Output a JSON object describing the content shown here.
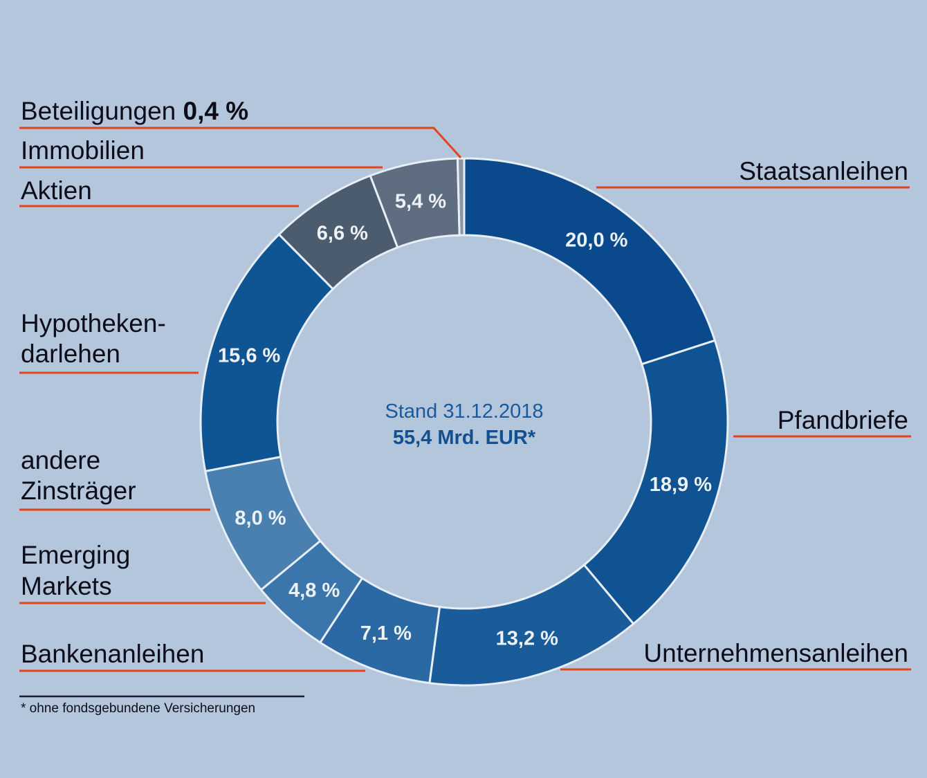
{
  "chart_data": {
    "type": "pie",
    "variant": "donut",
    "center_text": {
      "line1": "Stand 31.12.2018",
      "line2": "55,4 Mrd. EUR*"
    },
    "footnote": "* ohne fondsgebundene Versicherungen",
    "slices": [
      {
        "label": "Staatsanleihen",
        "value": 20.0,
        "value_label": "20,0 %",
        "color": "#0a4a8c"
      },
      {
        "label": "Pfandbriefe",
        "value": 18.9,
        "value_label": "18,9 %",
        "color": "#105393"
      },
      {
        "label": "Unternehmensanleihen",
        "value": 13.2,
        "value_label": "13,2 %",
        "color": "#1a5c9a"
      },
      {
        "label": "Bankenanleihen",
        "value": 7.1,
        "value_label": "7,1 %",
        "color": "#2a69a3"
      },
      {
        "label": "Emerging Markets",
        "value": 4.8,
        "value_label": "4,8 %",
        "color": "#3a75ab"
      },
      {
        "label": "andere Zinsträger",
        "value": 8.0,
        "value_label": "8,0 %",
        "color": "#4a80b0"
      },
      {
        "label": "Hypothekendarlehen",
        "value": 15.6,
        "value_label": "15,6 %",
        "color": "#0f5593"
      },
      {
        "label": "Aktien",
        "value": 6.6,
        "value_label": "6,6 %",
        "color": "#4a5c6e"
      },
      {
        "label": "Immobilien",
        "value": 5.4,
        "value_label": "5,4 %",
        "color": "#5e6e80"
      },
      {
        "label": "Beteiligungen",
        "value": 0.4,
        "value_label": "0,4 %",
        "color": "#8a96a4"
      }
    ],
    "callouts": [
      {
        "lines": [
          "Staatsanleihen"
        ]
      },
      {
        "lines": [
          "Pfandbriefe"
        ]
      },
      {
        "lines": [
          "Unternehmensanleihen"
        ]
      },
      {
        "lines": [
          "Bankenanleihen"
        ]
      },
      {
        "lines": [
          "Emerging",
          "Markets"
        ]
      },
      {
        "lines": [
          "andere",
          "Zinsträger"
        ]
      },
      {
        "lines": [
          "Hypotheken-",
          "darlehen"
        ]
      },
      {
        "lines": [
          "Aktien"
        ]
      },
      {
        "lines": [
          "Immobilien"
        ]
      },
      {
        "lines": [
          "Beteiligungen"
        ],
        "bold_suffix": "0,4 %"
      }
    ],
    "leader_color": "#e0451c"
  }
}
